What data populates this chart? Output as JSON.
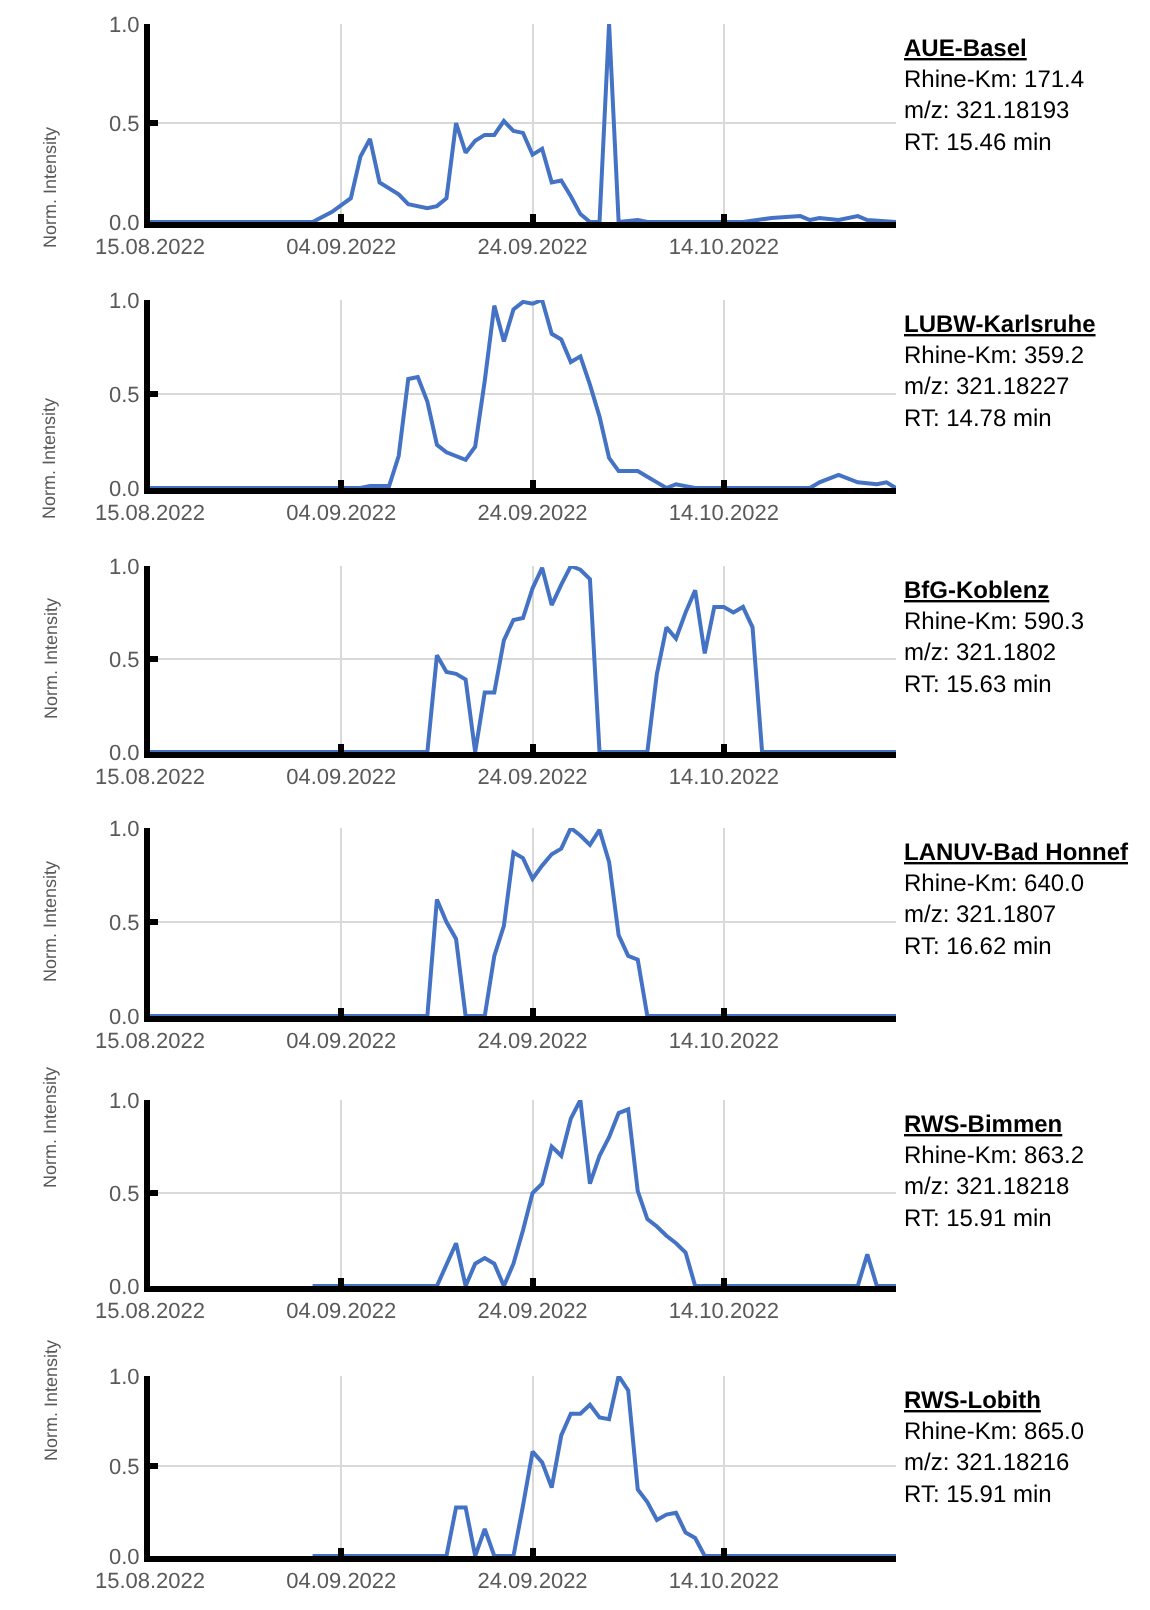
{
  "chart_data": [
    {
      "type": "line",
      "title": "AUE-Basel",
      "annotations": [
        "Rhine-Km: 171.4",
        "m/z: 321.18193",
        "RT: 15.46 min"
      ],
      "ylabel": "Norm. Intensity",
      "xlim": [
        "2022-08-15",
        "2022-11-01"
      ],
      "xticks": [
        {
          "value": "2022-08-15",
          "label": "15.08.2022"
        },
        {
          "value": "2022-09-04",
          "label": "04.09.2022"
        },
        {
          "value": "2022-09-24",
          "label": "24.09.2022"
        },
        {
          "value": "2022-10-14",
          "label": "14.10.2022"
        }
      ],
      "ylim": [
        0,
        1
      ],
      "yticks": [
        {
          "value": 0,
          "label": "0.0"
        },
        {
          "value": 0.5,
          "label": "0.5"
        },
        {
          "value": 1,
          "label": "1.0"
        }
      ],
      "grid": true,
      "marker": "none",
      "line_style": "solid",
      "series": [
        {
          "color": "#4472c4",
          "x": [
            "2022-08-15",
            "2022-09-01",
            "2022-09-03",
            "2022-09-05",
            "2022-09-06",
            "2022-09-07",
            "2022-09-08",
            "2022-09-10",
            "2022-09-11",
            "2022-09-13",
            "2022-09-14",
            "2022-09-15",
            "2022-09-16",
            "2022-09-17",
            "2022-09-18",
            "2022-09-19",
            "2022-09-20",
            "2022-09-21",
            "2022-09-22",
            "2022-09-23",
            "2022-09-24",
            "2022-09-25",
            "2022-09-26",
            "2022-09-27",
            "2022-09-28",
            "2022-09-29",
            "2022-09-30",
            "2022-10-01",
            "2022-10-02",
            "2022-10-03",
            "2022-10-05",
            "2022-10-06",
            "2022-10-16",
            "2022-10-19",
            "2022-10-22",
            "2022-10-23",
            "2022-10-24",
            "2022-10-26",
            "2022-10-28",
            "2022-10-29",
            "2022-11-01"
          ],
          "values": [
            0,
            0,
            0.05,
            0.12,
            0.33,
            0.42,
            0.2,
            0.14,
            0.09,
            0.07,
            0.08,
            0.12,
            0.5,
            0.35,
            0.41,
            0.44,
            0.44,
            0.51,
            0.46,
            0.45,
            0.34,
            0.37,
            0.2,
            0.21,
            0.13,
            0.04,
            0,
            0,
            1.0,
            0,
            0.01,
            0,
            0,
            0.02,
            0.03,
            0.01,
            0.02,
            0.01,
            0.03,
            0.01,
            0
          ]
        }
      ]
    },
    {
      "type": "line",
      "title": "LUBW-Karlsruhe",
      "annotations": [
        "Rhine-Km: 359.2",
        "m/z: 321.18227",
        "RT: 14.78 min"
      ],
      "ylabel": "Norm. Intensity",
      "xlim": [
        "2022-08-15",
        "2022-11-01"
      ],
      "xticks": [
        {
          "value": "2022-08-15",
          "label": "15.08.2022"
        },
        {
          "value": "2022-09-04",
          "label": "04.09.2022"
        },
        {
          "value": "2022-09-24",
          "label": "24.09.2022"
        },
        {
          "value": "2022-10-14",
          "label": "14.10.2022"
        }
      ],
      "ylim": [
        0,
        1
      ],
      "yticks": [
        {
          "value": 0,
          "label": "0.0"
        },
        {
          "value": 0.5,
          "label": "0.5"
        },
        {
          "value": 1,
          "label": "1.0"
        }
      ],
      "grid": true,
      "marker": "none",
      "line_style": "solid",
      "series": [
        {
          "color": "#4472c4",
          "x": [
            "2022-08-15",
            "2022-09-06",
            "2022-09-07",
            "2022-09-09",
            "2022-09-10",
            "2022-09-11",
            "2022-09-12",
            "2022-09-13",
            "2022-09-14",
            "2022-09-15",
            "2022-09-17",
            "2022-09-18",
            "2022-09-19",
            "2022-09-20",
            "2022-09-21",
            "2022-09-22",
            "2022-09-23",
            "2022-09-24",
            "2022-09-25",
            "2022-09-26",
            "2022-09-27",
            "2022-09-28",
            "2022-09-29",
            "2022-09-30",
            "2022-10-01",
            "2022-10-02",
            "2022-10-03",
            "2022-10-05",
            "2022-10-06",
            "2022-10-07",
            "2022-10-08",
            "2022-10-09",
            "2022-10-10",
            "2022-10-11",
            "2022-10-23",
            "2022-10-24",
            "2022-10-26",
            "2022-10-28",
            "2022-10-30",
            "2022-10-31",
            "2022-11-01"
          ],
          "values": [
            0,
            0,
            0.01,
            0.01,
            0.17,
            0.58,
            0.59,
            0.46,
            0.23,
            0.19,
            0.15,
            0.22,
            0.57,
            0.97,
            0.78,
            0.95,
            0.99,
            0.98,
            1.0,
            0.82,
            0.79,
            0.67,
            0.7,
            0.55,
            0.38,
            0.16,
            0.09,
            0.09,
            0.06,
            0.03,
            0,
            0.02,
            0.01,
            0,
            0,
            0.03,
            0.07,
            0.03,
            0.02,
            0.03,
            0
          ]
        }
      ]
    },
    {
      "type": "line",
      "title": "BfG-Koblenz",
      "annotations": [
        "Rhine-Km: 590.3",
        "m/z: 321.1802",
        "RT: 15.63 min"
      ],
      "ylabel": "Norm. Intensity",
      "xlim": [
        "2022-08-15",
        "2022-11-01"
      ],
      "xticks": [
        {
          "value": "2022-08-15",
          "label": "15.08.2022"
        },
        {
          "value": "2022-09-04",
          "label": "04.09.2022"
        },
        {
          "value": "2022-09-24",
          "label": "24.09.2022"
        },
        {
          "value": "2022-10-14",
          "label": "14.10.2022"
        }
      ],
      "ylim": [
        0,
        1
      ],
      "yticks": [
        {
          "value": 0,
          "label": "0.0"
        },
        {
          "value": 0.5,
          "label": "0.5"
        },
        {
          "value": 1,
          "label": "1.0"
        }
      ],
      "grid": true,
      "marker": "none",
      "line_style": "solid",
      "series": [
        {
          "color": "#4472c4",
          "x": [
            "2022-08-15",
            "2022-09-13",
            "2022-09-14",
            "2022-09-15",
            "2022-09-16",
            "2022-09-17",
            "2022-09-18",
            "2022-09-19",
            "2022-09-20",
            "2022-09-21",
            "2022-09-22",
            "2022-09-23",
            "2022-09-24",
            "2022-09-25",
            "2022-09-26",
            "2022-09-27",
            "2022-09-28",
            "2022-09-29",
            "2022-09-30",
            "2022-10-01",
            "2022-10-06",
            "2022-10-07",
            "2022-10-08",
            "2022-10-09",
            "2022-10-10",
            "2022-10-11",
            "2022-10-12",
            "2022-10-13",
            "2022-10-14",
            "2022-10-15",
            "2022-10-16",
            "2022-10-17",
            "2022-10-18",
            "2022-11-01"
          ],
          "values": [
            0,
            0,
            0.52,
            0.43,
            0.42,
            0.39,
            0,
            0.32,
            0.32,
            0.6,
            0.71,
            0.72,
            0.88,
            0.99,
            0.79,
            0.9,
            1.0,
            0.98,
            0.93,
            0,
            0,
            0.42,
            0.67,
            0.61,
            0.75,
            0.87,
            0.53,
            0.78,
            0.78,
            0.75,
            0.78,
            0.67,
            0,
            0
          ]
        }
      ]
    },
    {
      "type": "line",
      "title": "LANUV-Bad Honnef",
      "annotations": [
        "Rhine-Km: 640.0",
        "m/z: 321.1807",
        "RT: 16.62 min"
      ],
      "ylabel": "Norm. Intensity",
      "xlim": [
        "2022-08-15",
        "2022-11-01"
      ],
      "xticks": [
        {
          "value": "2022-08-15",
          "label": "15.08.2022"
        },
        {
          "value": "2022-09-04",
          "label": "04.09.2022"
        },
        {
          "value": "2022-09-24",
          "label": "24.09.2022"
        },
        {
          "value": "2022-10-14",
          "label": "14.10.2022"
        }
      ],
      "ylim": [
        0,
        1
      ],
      "yticks": [
        {
          "value": 0,
          "label": "0.0"
        },
        {
          "value": 0.5,
          "label": "0.5"
        },
        {
          "value": 1,
          "label": "1.0"
        }
      ],
      "grid": true,
      "marker": "none",
      "line_style": "solid",
      "series": [
        {
          "color": "#4472c4",
          "x": [
            "2022-08-15",
            "2022-09-13",
            "2022-09-14",
            "2022-09-15",
            "2022-09-16",
            "2022-09-17",
            "2022-09-19",
            "2022-09-20",
            "2022-09-21",
            "2022-09-22",
            "2022-09-23",
            "2022-09-24",
            "2022-09-25",
            "2022-09-26",
            "2022-09-27",
            "2022-09-28",
            "2022-09-29",
            "2022-09-30",
            "2022-10-01",
            "2022-10-02",
            "2022-10-03",
            "2022-10-04",
            "2022-10-05",
            "2022-10-06",
            "2022-11-01"
          ],
          "values": [
            0,
            0,
            0.62,
            0.5,
            0.41,
            0,
            0,
            0.32,
            0.48,
            0.87,
            0.84,
            0.73,
            0.8,
            0.86,
            0.89,
            1.0,
            0.96,
            0.91,
            0.99,
            0.82,
            0.43,
            0.32,
            0.3,
            0,
            0
          ]
        }
      ]
    },
    {
      "type": "line",
      "title": "RWS-Bimmen",
      "annotations": [
        "Rhine-Km: 863.2",
        "m/z: 321.18218",
        "RT: 15.91 min"
      ],
      "ylabel": "Norm. Intensity",
      "xlim": [
        "2022-08-15",
        "2022-11-01"
      ],
      "xticks": [
        {
          "value": "2022-08-15",
          "label": "15.08.2022"
        },
        {
          "value": "2022-09-04",
          "label": "04.09.2022"
        },
        {
          "value": "2022-09-24",
          "label": "24.09.2022"
        },
        {
          "value": "2022-10-14",
          "label": "14.10.2022"
        }
      ],
      "ylim": [
        0,
        1
      ],
      "yticks": [
        {
          "value": 0,
          "label": "0.0"
        },
        {
          "value": 0.5,
          "label": "0.5"
        },
        {
          "value": 1,
          "label": "1.0"
        }
      ],
      "grid": true,
      "marker": "none",
      "line_style": "solid",
      "series": [
        {
          "color": "#4472c4",
          "x": [
            "2022-09-01",
            "2022-09-14",
            "2022-09-16",
            "2022-09-17",
            "2022-09-18",
            "2022-09-19",
            "2022-09-20",
            "2022-09-21",
            "2022-09-22",
            "2022-09-23",
            "2022-09-24",
            "2022-09-25",
            "2022-09-26",
            "2022-09-27",
            "2022-09-28",
            "2022-09-29",
            "2022-09-30",
            "2022-10-01",
            "2022-10-02",
            "2022-10-03",
            "2022-10-04",
            "2022-10-05",
            "2022-10-06",
            "2022-10-07",
            "2022-10-08",
            "2022-10-09",
            "2022-10-10",
            "2022-10-11",
            "2022-10-28",
            "2022-10-29",
            "2022-10-30",
            "2022-11-01"
          ],
          "values": [
            0,
            0,
            0.23,
            0,
            0.12,
            0.15,
            0.12,
            0,
            0.12,
            0.3,
            0.5,
            0.55,
            0.75,
            0.7,
            0.9,
            1.0,
            0.55,
            0.7,
            0.8,
            0.93,
            0.95,
            0.51,
            0.36,
            0.32,
            0.27,
            0.23,
            0.18,
            0,
            0,
            0.17,
            0,
            0
          ]
        }
      ]
    },
    {
      "type": "line",
      "title": "RWS-Lobith",
      "annotations": [
        "Rhine-Km: 865.0",
        "m/z: 321.18216",
        "RT: 15.91 min"
      ],
      "ylabel": "Norm. Intensity",
      "xlim": [
        "2022-08-15",
        "2022-11-01"
      ],
      "xticks": [
        {
          "value": "2022-08-15",
          "label": "15.08.2022"
        },
        {
          "value": "2022-09-04",
          "label": "04.09.2022"
        },
        {
          "value": "2022-09-24",
          "label": "24.09.2022"
        },
        {
          "value": "2022-10-14",
          "label": "14.10.2022"
        }
      ],
      "ylim": [
        0,
        1
      ],
      "yticks": [
        {
          "value": 0,
          "label": "0.0"
        },
        {
          "value": 0.5,
          "label": "0.5"
        },
        {
          "value": 1,
          "label": "1.0"
        }
      ],
      "grid": true,
      "marker": "none",
      "line_style": "solid",
      "series": [
        {
          "color": "#4472c4",
          "x": [
            "2022-09-01",
            "2022-09-15",
            "2022-09-16",
            "2022-09-17",
            "2022-09-18",
            "2022-09-19",
            "2022-09-20",
            "2022-09-22",
            "2022-09-23",
            "2022-09-24",
            "2022-09-25",
            "2022-09-26",
            "2022-09-27",
            "2022-09-28",
            "2022-09-29",
            "2022-09-30",
            "2022-10-01",
            "2022-10-02",
            "2022-10-03",
            "2022-10-04",
            "2022-10-05",
            "2022-10-06",
            "2022-10-07",
            "2022-10-08",
            "2022-10-09",
            "2022-10-10",
            "2022-10-11",
            "2022-10-12",
            "2022-11-01"
          ],
          "values": [
            0,
            0,
            0.27,
            0.27,
            0,
            0.15,
            0,
            0,
            0.28,
            0.58,
            0.52,
            0.38,
            0.67,
            0.79,
            0.79,
            0.84,
            0.77,
            0.76,
            1.0,
            0.92,
            0.37,
            0.3,
            0.2,
            0.23,
            0.24,
            0.13,
            0.1,
            0,
            0
          ]
        }
      ]
    }
  ]
}
